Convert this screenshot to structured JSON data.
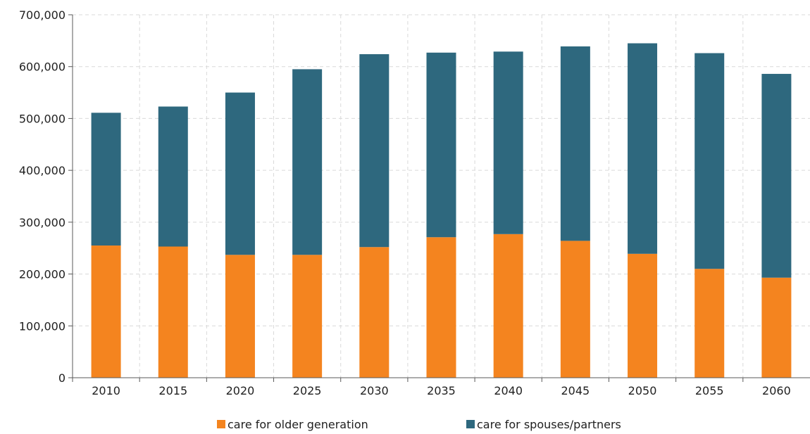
{
  "chart_data": {
    "type": "bar",
    "stacked": true,
    "categories": [
      "2010",
      "2015",
      "2020",
      "2025",
      "2030",
      "2035",
      "2040",
      "2045",
      "2050",
      "2055",
      "2060"
    ],
    "series": [
      {
        "name": "care for older generation",
        "color": "#f4841f",
        "values": [
          255000,
          253000,
          237000,
          237000,
          252000,
          271000,
          277000,
          264000,
          239000,
          210000,
          193000
        ]
      },
      {
        "name": "care for spouses/partners",
        "color": "#2e687e",
        "values": [
          256000,
          270000,
          313000,
          358000,
          372000,
          356000,
          352000,
          375000,
          406000,
          416000,
          393000
        ]
      }
    ],
    "ylim": [
      0,
      700000
    ],
    "yticks": [
      0,
      100000,
      200000,
      300000,
      400000,
      500000,
      600000,
      700000
    ],
    "ytick_labels": [
      "0",
      "100,000",
      "200,000",
      "300,000",
      "400,000",
      "500,000",
      "600,000",
      "700,000"
    ],
    "grid": true,
    "legend_position": "bottom"
  }
}
